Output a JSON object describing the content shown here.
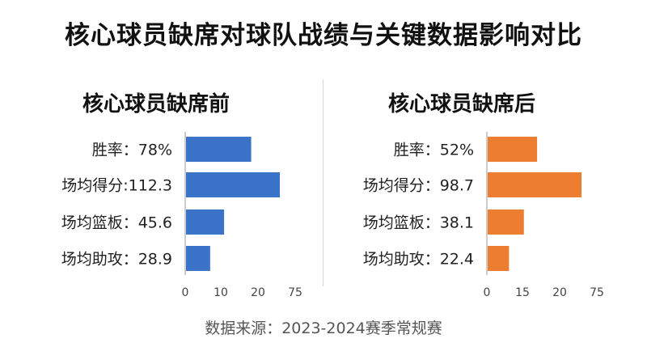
{
  "title": "核心球员缺席对球队战绩与关键数据影响对比",
  "source": "数据来源：2023-2024赛季常规赛",
  "chart_data": [
    {
      "type": "bar",
      "orientation": "horizontal",
      "title": "核心球员缺席前",
      "color": "#3b73c8",
      "categories": [
        "胜率：",
        "场均得分:",
        "场均篮板：",
        "场均助攻："
      ],
      "value_labels": [
        "78%",
        "112.3",
        "45.6",
        "28.9"
      ],
      "values": [
        78,
        112.3,
        45.6,
        28.9
      ],
      "tick_labels": [
        "0",
        "10",
        "20",
        "75"
      ],
      "grid": false
    },
    {
      "type": "bar",
      "orientation": "horizontal",
      "title": "核心球员缺席后",
      "color": "#ed7d31",
      "categories": [
        "胜率：",
        "场均得分：",
        "场均篮板：",
        "场均助攻："
      ],
      "value_labels": [
        "52%",
        "98.7",
        "38.1",
        "22.4"
      ],
      "values": [
        52,
        98.7,
        38.1,
        22.4
      ],
      "tick_labels": [
        "0",
        "15",
        "20",
        "75"
      ],
      "grid": false
    }
  ]
}
